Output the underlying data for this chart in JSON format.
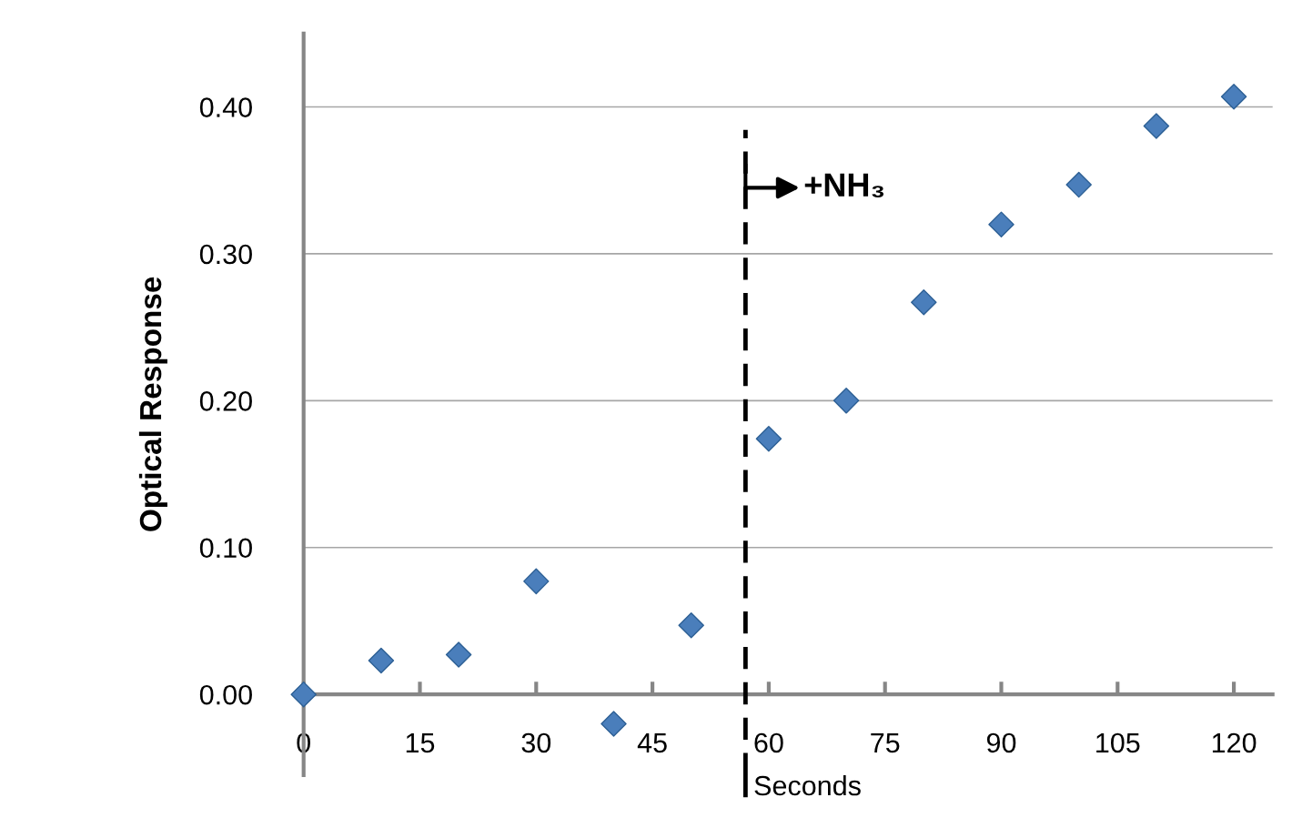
{
  "chart_data": {
    "type": "scatter",
    "xlabel": "Seconds",
    "ylabel": "Optical Response",
    "x": [
      0,
      10,
      20,
      30,
      40,
      50,
      60,
      70,
      80,
      90,
      100,
      110,
      120
    ],
    "series": [
      {
        "color": "#4a7ebb",
        "values": [
          0.0,
          0.023,
          0.027,
          0.077,
          -0.02,
          0.047,
          0.174,
          0.2,
          0.267,
          0.32,
          0.347,
          0.387,
          0.407
        ]
      }
    ],
    "xlim": [
      0,
      125
    ],
    "ylim": [
      -0.055,
      0.45
    ],
    "xticks": [
      0,
      15,
      30,
      45,
      60,
      75,
      90,
      105,
      120
    ],
    "yticks": [
      {
        "value": 0,
        "label": "0.00"
      },
      {
        "value": 0.1,
        "label": "0.10"
      },
      {
        "value": 0.2,
        "label": "0.20"
      },
      {
        "value": 0.3,
        "label": "0.30"
      },
      {
        "value": 0.4,
        "label": "0.40"
      }
    ],
    "ref_lines": [
      {
        "axis": "x",
        "value": 57,
        "label": "+NH₃",
        "color": "#000000",
        "line_style": "dashed"
      }
    ],
    "grid": "y",
    "marker": "diamond"
  }
}
